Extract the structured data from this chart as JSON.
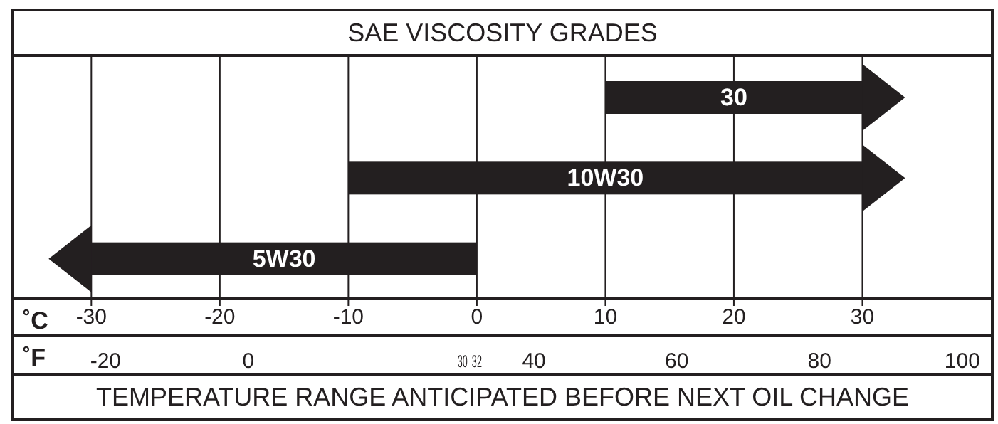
{
  "chart_data": {
    "type": "bar",
    "orientation": "horizontal",
    "title": "SAE VISCOSITY GRADES",
    "categories": [
      "30",
      "10W30",
      "5W30"
    ],
    "base": [
      10,
      -10,
      0
    ],
    "values": [
      20,
      40,
      -30
    ],
    "color": "#231f20",
    "xlabel": "˚C",
    "x2label": "˚F",
    "xlim": [
      -36,
      40
    ],
    "xticks": [
      -30,
      -20,
      -10,
      0,
      10,
      20,
      30
    ],
    "x2lim": [
      -32.8,
      104
    ],
    "x2ticks": [
      -20,
      0,
      30,
      32,
      40,
      60,
      80,
      100
    ],
    "grid": "x",
    "annotations": [
      "TEMPERATURE RANGE ANTICIPATED BEFORE NEXT OIL CHANGE"
    ]
  }
}
